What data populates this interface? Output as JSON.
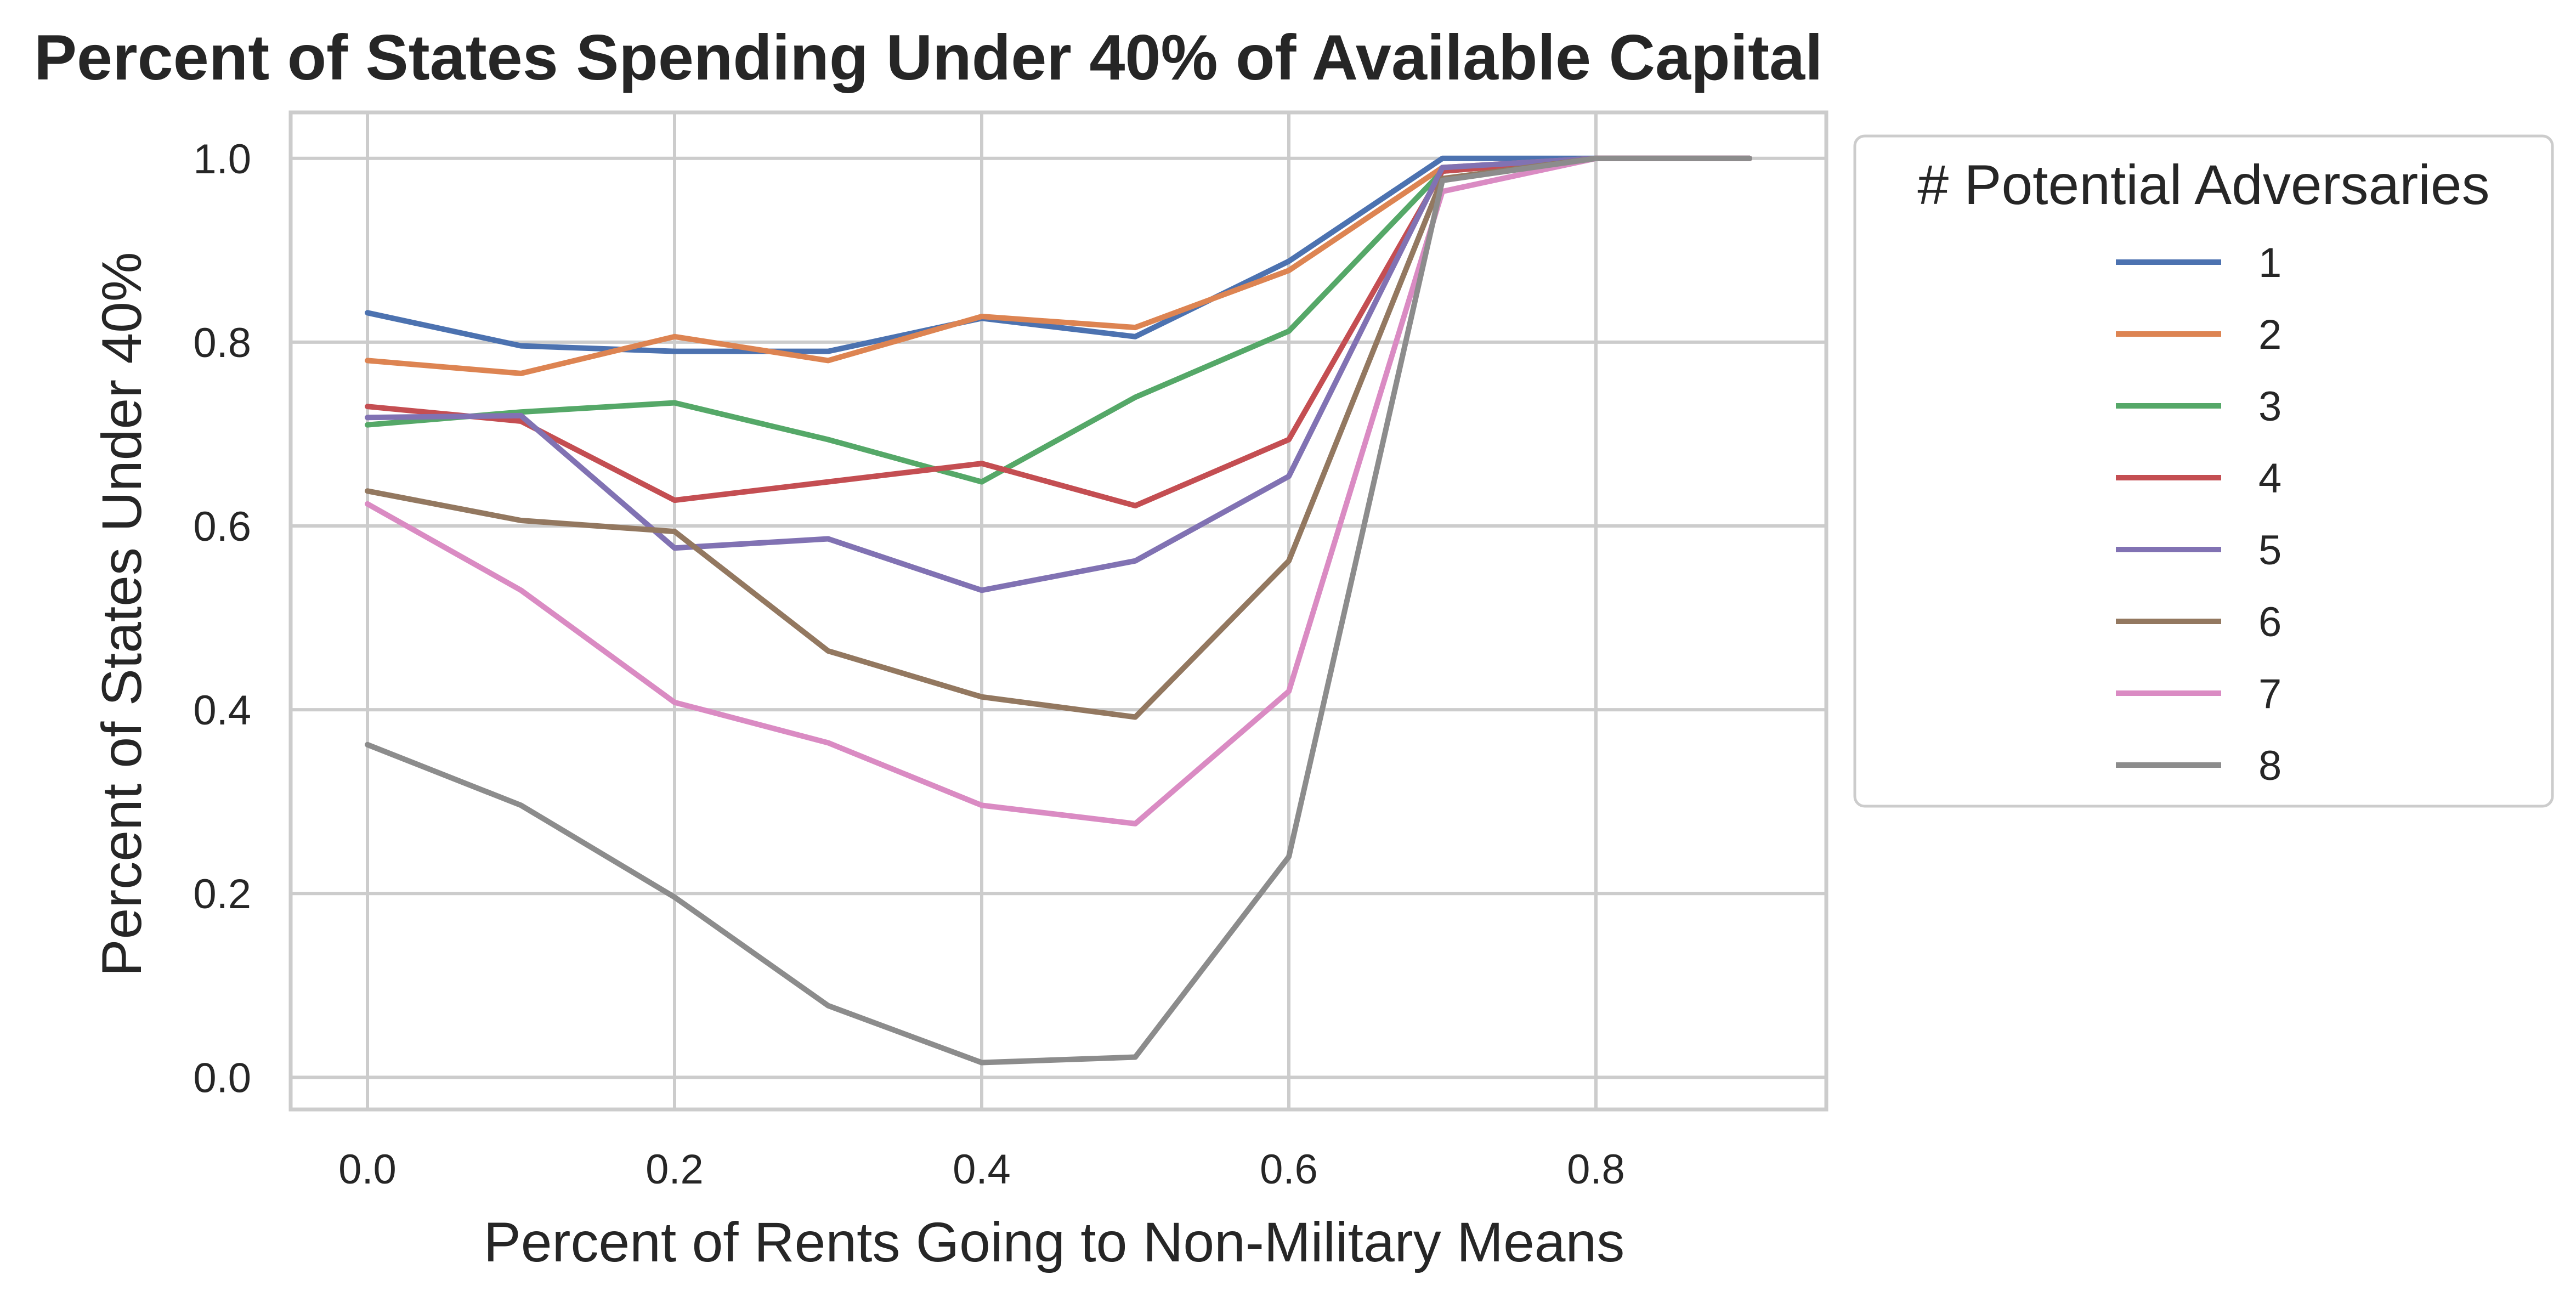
{
  "chart_data": {
    "type": "line",
    "title": "Percent of States Spending Under 40% of Available Capital",
    "xlabel": "Percent of Rents Going to Non-Military Means",
    "ylabel": "Percent of States Under 40%",
    "xlim": [
      -0.05,
      0.95
    ],
    "ylim": [
      -0.035,
      1.05
    ],
    "xticks": [
      0.0,
      0.2,
      0.4,
      0.6,
      0.8
    ],
    "xtick_labels": [
      "0.0",
      "0.2",
      "0.4",
      "0.6",
      "0.8"
    ],
    "yticks": [
      0.0,
      0.2,
      0.4,
      0.6,
      0.8,
      1.0
    ],
    "ytick_labels": [
      "0.0",
      "0.2",
      "0.4",
      "0.6",
      "0.8",
      "1.0"
    ],
    "grid": true,
    "legend": {
      "title": "# Potential Adversaries",
      "placement": "outside-right-top"
    },
    "x": [
      0.0,
      0.1,
      0.2,
      0.3,
      0.4,
      0.5,
      0.6,
      0.7,
      0.8,
      0.9
    ],
    "series": [
      {
        "name": "1",
        "color": "#4c72b0",
        "values": [
          0.832,
          0.796,
          0.79,
          0.79,
          0.826,
          0.806,
          0.888,
          1.0,
          1.0,
          1.0
        ]
      },
      {
        "name": "2",
        "color": "#dd8452",
        "values": [
          0.78,
          0.766,
          0.806,
          0.78,
          0.828,
          0.816,
          0.878,
          0.99,
          1.0,
          1.0
        ]
      },
      {
        "name": "3",
        "color": "#55a868",
        "values": [
          0.71,
          0.724,
          0.734,
          0.694,
          0.648,
          0.74,
          0.812,
          0.986,
          1.0,
          1.0
        ]
      },
      {
        "name": "4",
        "color": "#c44e52",
        "values": [
          0.73,
          0.714,
          0.628,
          0.648,
          0.668,
          0.622,
          0.694,
          0.986,
          1.0,
          1.0
        ]
      },
      {
        "name": "5",
        "color": "#8172b3",
        "values": [
          0.718,
          0.72,
          0.576,
          0.586,
          0.53,
          0.562,
          0.654,
          0.99,
          1.0,
          1.0
        ]
      },
      {
        "name": "6",
        "color": "#937860",
        "values": [
          0.638,
          0.606,
          0.594,
          0.464,
          0.414,
          0.392,
          0.562,
          0.978,
          1.0,
          1.0
        ]
      },
      {
        "name": "7",
        "color": "#da8bc3",
        "values": [
          0.624,
          0.53,
          0.408,
          0.364,
          0.296,
          0.276,
          0.42,
          0.964,
          1.0,
          1.0
        ]
      },
      {
        "name": "8",
        "color": "#8c8c8c",
        "values": [
          0.362,
          0.296,
          0.196,
          0.078,
          0.016,
          0.022,
          0.24,
          0.976,
          1.0,
          1.0
        ]
      }
    ]
  }
}
